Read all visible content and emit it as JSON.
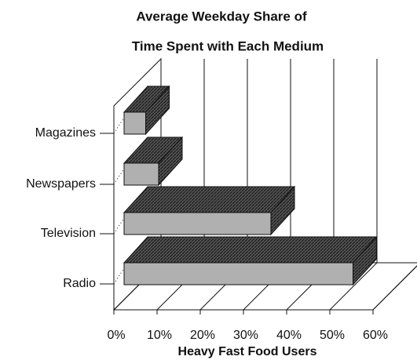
{
  "chart_data": {
    "type": "bar",
    "orientation": "horizontal",
    "title": [
      "Average Weekday Share of",
      "Time Spent with Each Medium"
    ],
    "x_label": "Heavy Fast Food Users",
    "categories": [
      "Magazines",
      "Newspapers",
      "Television",
      "Radio"
    ],
    "values": [
      5,
      8,
      34,
      53
    ],
    "color": "#b0b0b0",
    "xlim": [
      0,
      60
    ],
    "xticks": [
      {
        "value": 0,
        "label": "0%"
      },
      {
        "value": 10,
        "label": "10%"
      },
      {
        "value": 20,
        "label": "20%"
      },
      {
        "value": 30,
        "label": "30%"
      },
      {
        "value": 40,
        "label": "40%"
      },
      {
        "value": 50,
        "label": "50%"
      },
      {
        "value": 60,
        "label": "60%"
      }
    ],
    "grid": true
  }
}
